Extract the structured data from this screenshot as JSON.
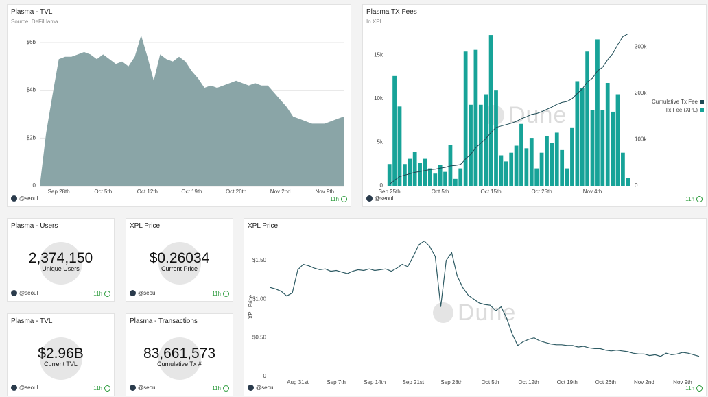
{
  "chart_data": [
    {
      "type": "area",
      "title": "Plasma - TVL",
      "subtitle": "Source: DeFiLlama",
      "x": [
        "Sep 25th",
        "Sep 26th",
        "Sep 27th",
        "Sep 28th",
        "Sep 29th",
        "Sep 30th",
        "Oct 1st",
        "Oct 2nd",
        "Oct 3rd",
        "Oct 4th",
        "Oct 5th",
        "Oct 6th",
        "Oct 7th",
        "Oct 8th",
        "Oct 9th",
        "Oct 10th",
        "Oct 11th",
        "Oct 12th",
        "Oct 13th",
        "Oct 14th",
        "Oct 15th",
        "Oct 16th",
        "Oct 17th",
        "Oct 18th",
        "Oct 19th",
        "Oct 20th",
        "Oct 21st",
        "Oct 22nd",
        "Oct 23rd",
        "Oct 24th",
        "Oct 25th",
        "Oct 26th",
        "Oct 27th",
        "Oct 28th",
        "Oct 29th",
        "Oct 30th",
        "Oct 31st",
        "Nov 1st",
        "Nov 2nd",
        "Nov 3rd",
        "Nov 4th",
        "Nov 5th",
        "Nov 6th",
        "Nov 7th",
        "Nov 8th",
        "Nov 9th",
        "Nov 10th",
        "Nov 11th",
        "Nov 12th"
      ],
      "xticks": [
        "Sep 28th",
        "Oct 5th",
        "Oct 12th",
        "Oct 19th",
        "Oct 26th",
        "Nov 2nd",
        "Nov 9th"
      ],
      "values": [
        0,
        2.2,
        3.8,
        5.3,
        5.4,
        5.4,
        5.5,
        5.6,
        5.5,
        5.3,
        5.5,
        5.3,
        5.1,
        5.2,
        5.0,
        5.4,
        6.3,
        5.4,
        4.4,
        5.5,
        5.3,
        5.2,
        5.4,
        5.2,
        4.8,
        4.5,
        4.1,
        4.2,
        4.1,
        4.2,
        4.3,
        4.4,
        4.3,
        4.2,
        4.3,
        4.2,
        4.2,
        3.9,
        3.6,
        3.3,
        2.9,
        2.8,
        2.7,
        2.6,
        2.6,
        2.6,
        2.7,
        2.8,
        2.9
      ],
      "color": "#8aa5a7",
      "ylim": [
        0,
        6.4
      ],
      "yticks": [
        0,
        {
          "value": 2,
          "label": "$2b"
        },
        {
          "value": 4,
          "label": "$4b"
        },
        {
          "value": 6,
          "label": "$6b"
        }
      ],
      "grid": true
    },
    {
      "type": "combo",
      "title": "Plasma TX Fees",
      "subtitle": "In XPL",
      "x": [
        "Sep 25th",
        "Sep 26th",
        "Sep 27th",
        "Sep 28th",
        "Sep 29th",
        "Sep 30th",
        "Oct 1st",
        "Oct 2nd",
        "Oct 3rd",
        "Oct 4th",
        "Oct 5th",
        "Oct 6th",
        "Oct 7th",
        "Oct 8th",
        "Oct 9th",
        "Oct 10th",
        "Oct 11th",
        "Oct 12th",
        "Oct 13th",
        "Oct 14th",
        "Oct 15th",
        "Oct 16th",
        "Oct 17th",
        "Oct 18th",
        "Oct 19th",
        "Oct 20th",
        "Oct 21st",
        "Oct 22nd",
        "Oct 23rd",
        "Oct 24th",
        "Oct 25th",
        "Oct 26th",
        "Oct 27th",
        "Oct 28th",
        "Oct 29th",
        "Oct 30th",
        "Oct 31st",
        "Nov 1st",
        "Nov 2nd",
        "Nov 3rd",
        "Nov 4th",
        "Nov 5th",
        "Nov 6th",
        "Nov 7th",
        "Nov 8th",
        "Nov 9th",
        "Nov 10th",
        "Nov 11th"
      ],
      "xticks": [
        "Sep 25th",
        "Oct 5th",
        "Oct 15th",
        "Oct 25th",
        "Nov 4th"
      ],
      "series": [
        {
          "name": "Cumulative Tx Fee",
          "type": "line",
          "axis": "y2",
          "color": "#1d4b55",
          "values": [
            3000,
            12000,
            20000,
            23000,
            26000,
            29000,
            31000,
            33000,
            35000,
            36000,
            38000,
            40000,
            43000,
            44000,
            46000,
            58000,
            68000,
            82000,
            92000,
            102000,
            115000,
            126000,
            129000,
            132000,
            135000,
            139000,
            145000,
            149000,
            154000,
            156000,
            160000,
            165000,
            170000,
            176000,
            180000,
            182000,
            188000,
            199000,
            209000,
            224000,
            232000,
            248000,
            256000,
            272000,
            285000,
            305000,
            322000,
            328000
          ]
        },
        {
          "name": "Tx Fee (XPL)",
          "type": "bar",
          "color": "#17a398",
          "values": [
            2500,
            12600,
            9100,
            2500,
            3100,
            3900,
            2600,
            3100,
            2000,
            1400,
            2400,
            1600,
            4700,
            800,
            2000,
            15400,
            9300,
            15600,
            9300,
            10500,
            17300,
            11000,
            3500,
            2800,
            3800,
            4600,
            7100,
            4300,
            5500,
            2000,
            3800,
            5700,
            4900,
            6100,
            4100,
            2000,
            6700,
            12000,
            11200,
            15400,
            8700,
            16800,
            8700,
            11800,
            8500,
            10500,
            3800,
            900
          ]
        }
      ],
      "ylim": [
        0,
        17700
      ],
      "yticks": [
        0,
        {
          "value": 5000,
          "label": "5k"
        },
        {
          "value": 10000,
          "label": "10k"
        },
        {
          "value": 15000,
          "label": "15k"
        }
      ],
      "y2lim": [
        0,
        333000
      ],
      "y2ticks": [
        0,
        {
          "value": 100000,
          "label": "100k"
        },
        {
          "value": 200000,
          "label": "200k"
        },
        {
          "value": 300000,
          "label": "300k"
        }
      ],
      "legend": "right",
      "grid": false
    },
    {
      "type": "line",
      "title": "XPL Price",
      "y_label": "XPL Price",
      "x": [
        "Aug 26th",
        "Aug 27th",
        "Aug 28th",
        "Aug 29th",
        "Aug 30th",
        "Aug 31st",
        "Sep 1st",
        "Sep 2nd",
        "Sep 3rd",
        "Sep 4th",
        "Sep 5th",
        "Sep 6th",
        "Sep 7th",
        "Sep 8th",
        "Sep 9th",
        "Sep 10th",
        "Sep 11th",
        "Sep 12th",
        "Sep 13th",
        "Sep 14th",
        "Sep 15th",
        "Sep 16th",
        "Sep 17th",
        "Sep 18th",
        "Sep 19th",
        "Sep 20th",
        "Sep 21st",
        "Sep 22nd",
        "Sep 23rd",
        "Sep 24th",
        "Sep 25th",
        "Sep 26th",
        "Sep 27th",
        "Sep 28th",
        "Sep 29th",
        "Sep 30th",
        "Oct 1st",
        "Oct 2nd",
        "Oct 3rd",
        "Oct 4th",
        "Oct 5th",
        "Oct 6th",
        "Oct 7th",
        "Oct 8th",
        "Oct 9th",
        "Oct 10th",
        "Oct 11th",
        "Oct 12th",
        "Oct 13th",
        "Oct 14th",
        "Oct 15th",
        "Oct 16th",
        "Oct 17th",
        "Oct 18th",
        "Oct 19th",
        "Oct 20th",
        "Oct 21st",
        "Oct 22nd",
        "Oct 23rd",
        "Oct 24th",
        "Oct 25th",
        "Oct 26th",
        "Oct 27th",
        "Oct 28th",
        "Oct 29th",
        "Oct 30th",
        "Oct 31st",
        "Nov 1st",
        "Nov 2nd",
        "Nov 3rd",
        "Nov 4th",
        "Nov 5th",
        "Nov 6th",
        "Nov 7th",
        "Nov 8th",
        "Nov 9th",
        "Nov 10th",
        "Nov 11th",
        "Nov 12th"
      ],
      "xticks": [
        "Aug 31st",
        "Sep 7th",
        "Sep 14th",
        "Sep 21st",
        "Sep 28th",
        "Oct 5th",
        "Oct 12th",
        "Oct 19th",
        "Oct 26th",
        "Nov 2nd",
        "Nov 9th"
      ],
      "values": [
        1.15,
        1.13,
        1.1,
        1.04,
        1.08,
        1.38,
        1.45,
        1.43,
        1.4,
        1.38,
        1.39,
        1.36,
        1.37,
        1.35,
        1.33,
        1.36,
        1.38,
        1.37,
        1.39,
        1.37,
        1.38,
        1.39,
        1.36,
        1.4,
        1.45,
        1.42,
        1.55,
        1.7,
        1.75,
        1.68,
        1.55,
        0.9,
        1.5,
        1.6,
        1.3,
        1.15,
        1.05,
        1.0,
        0.95,
        0.93,
        0.92,
        0.85,
        0.9,
        0.75,
        0.55,
        0.4,
        0.45,
        0.48,
        0.5,
        0.46,
        0.44,
        0.42,
        0.41,
        0.41,
        0.4,
        0.4,
        0.38,
        0.39,
        0.37,
        0.36,
        0.36,
        0.34,
        0.33,
        0.34,
        0.33,
        0.32,
        0.3,
        0.29,
        0.29,
        0.27,
        0.28,
        0.26,
        0.3,
        0.28,
        0.29,
        0.31,
        0.3,
        0.28,
        0.26
      ],
      "color": "#2d5a63",
      "ylim": [
        0,
        1.8
      ],
      "yticks": [
        0,
        {
          "value": 0.5,
          "label": "$0.50"
        },
        {
          "value": 1,
          "label": "$1.00"
        },
        {
          "value": 1.5,
          "label": "$1.50"
        }
      ],
      "grid": false
    }
  ],
  "counters": [
    {
      "title": "Plasma - Users",
      "value": "2,374,150",
      "label": "Unique Users"
    },
    {
      "title": "XPL Price",
      "value": "$0.26034",
      "label": "Current Price"
    },
    {
      "title": "Plasma - TVL",
      "value": "$2.96B",
      "label": "Current TVL"
    },
    {
      "title": "Plasma - Transactions",
      "value": "83,661,573",
      "label": "Cumulative Tx #"
    }
  ],
  "footer": {
    "user": "@seoul",
    "age": "11h"
  },
  "watermark": "Dune"
}
